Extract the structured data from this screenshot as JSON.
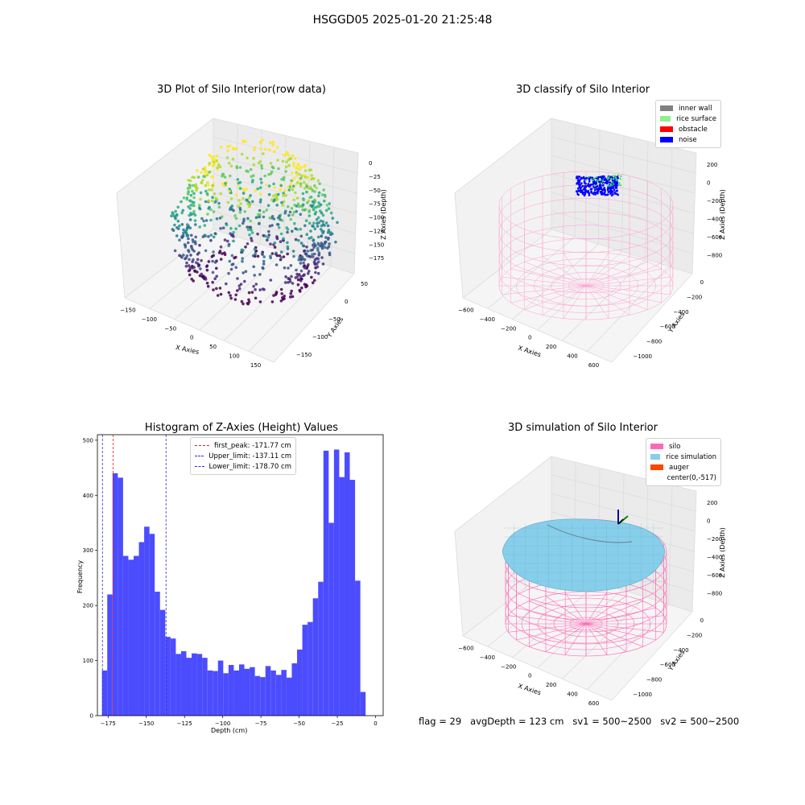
{
  "suptitle": "HSGGD05 2025-01-20 21:25:48",
  "footer": {
    "flag": "flag = 29",
    "avg_depth": "avgDepth = 123 cm",
    "sv1": "sv1 = 500~2500",
    "sv2": "sv2 = 500~2500"
  },
  "colors": {
    "histogram_bar": "#4c4cff",
    "first_peak": "#e8202a",
    "limit_lines": "#2b2bd6",
    "inner_wall": "#808080",
    "rice_surface": "#90ee90",
    "obstacle": "#ff0000",
    "noise": "#0000ff",
    "silo": "#ff69b4",
    "rice_simulation": "#87ceeb",
    "auger": "#ff4500"
  },
  "chart_data": [
    {
      "type": "scatter",
      "projection": "3d",
      "title": "3D Plot of Silo Interior(row data)",
      "xlabel": "X Axies",
      "ylabel": "Y Axies",
      "zlabel": "Z Axies (Depth)",
      "xticks": [
        "−150",
        "−100",
        "−50",
        "0",
        "50",
        "100",
        "150"
      ],
      "yticks": [
        "50",
        "0",
        "−50",
        "−100",
        "−150"
      ],
      "zticks": [
        "0",
        "−25",
        "−50",
        "−75",
        "−100",
        "−125",
        "−150",
        "−175"
      ],
      "colormap": "viridis"
    },
    {
      "type": "scatter",
      "projection": "3d",
      "title": "3D classify of Silo Interior",
      "xlabel": "X Axies",
      "ylabel": "Y Axies",
      "zlabel": "Z Axies (Depth)",
      "xticks": [
        "−600",
        "−400",
        "−200",
        "0",
        "200",
        "400",
        "600"
      ],
      "yticks": [
        "0",
        "−200",
        "−400",
        "−600",
        "−800",
        "−1000"
      ],
      "zticks": [
        "200",
        "0",
        "−200",
        "−400",
        "−600",
        "−800"
      ],
      "legend": [
        "inner wall",
        "rice surface",
        "obstacle",
        "noise"
      ],
      "legend_loc": "upper right"
    },
    {
      "type": "bar",
      "title": "Histogram of Z-Axies (Height) Values",
      "xlabel": "Depth (cm)",
      "ylabel": "Frequency",
      "xlim": [
        -182,
        5
      ],
      "ylim": [
        0,
        510
      ],
      "xticks": [
        -175,
        -150,
        -125,
        -100,
        -75,
        -50,
        -25,
        0
      ],
      "xtick_labels": [
        "−175",
        "−150",
        "−125",
        "−100",
        "−75",
        "−50",
        "−25",
        "0"
      ],
      "yticks": [
        0,
        100,
        200,
        300,
        400,
        500
      ],
      "yticks_labels": [
        "0",
        "100",
        "200",
        "300",
        "400",
        "500"
      ],
      "bin_start": -179.0,
      "bin_width": 3.45,
      "values": [
        82,
        220,
        440,
        432,
        290,
        283,
        290,
        315,
        343,
        330,
        225,
        192,
        143,
        140,
        112,
        117,
        105,
        113,
        112,
        105,
        82,
        81,
        100,
        77,
        92,
        82,
        93,
        85,
        88,
        72,
        70,
        90,
        82,
        74,
        83,
        69,
        95,
        120,
        165,
        170,
        213,
        243,
        481,
        350,
        483,
        433,
        478,
        428,
        245,
        43
      ],
      "lines": [
        {
          "label": "first_peak: -171.77 cm",
          "x": -171.77,
          "color": "#e8202a"
        },
        {
          "label": "Upper_limit: -137.11 cm",
          "x": -137.11,
          "color": "#2b2bd6"
        },
        {
          "label": "Lower_limit: -178.70 cm",
          "x": -178.7,
          "color": "#2b2bd6"
        }
      ]
    },
    {
      "type": "scatter",
      "projection": "3d",
      "title": "3D simulation of Silo Interior",
      "xlabel": "X Axies",
      "ylabel": "Y Axies",
      "zlabel": "Z Axies (Depth)",
      "xticks": [
        "−600",
        "−400",
        "−200",
        "0",
        "200",
        "400",
        "600"
      ],
      "yticks": [
        "0",
        "−200",
        "−400",
        "−600",
        "−800",
        "−1000"
      ],
      "zticks": [
        "200",
        "0",
        "−200",
        "−400",
        "−600",
        "−800"
      ],
      "legend": [
        "silo",
        "rice simulation",
        "auger",
        "center(0,-517)"
      ],
      "legend_loc": "upper right"
    }
  ]
}
